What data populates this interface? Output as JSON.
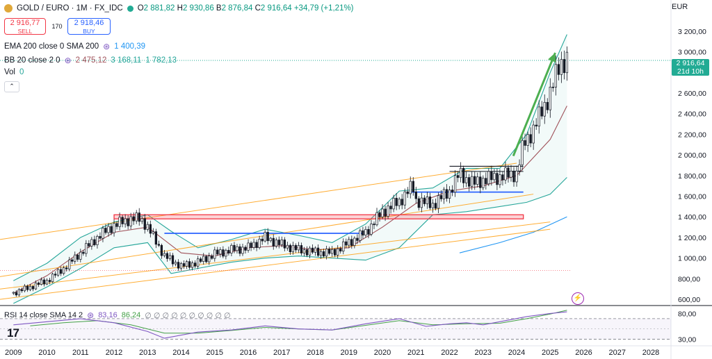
{
  "header": {
    "symbol_line": "GOLD / EURO · 1M · FX_IDC",
    "ohlc": {
      "o_label": "O",
      "o": "2 881,82",
      "h_label": "H",
      "h": "2 930,86",
      "b_label": "B",
      "b": "2 876,84",
      "c_label": "C",
      "c": "2 916,64",
      "change": "+34,79 (+1,21%)"
    },
    "currency": "EUR"
  },
  "trade": {
    "sell_price": "2 916,77",
    "sell_label": "SELL",
    "spread": "170",
    "buy_price": "2 918,46",
    "buy_label": "BUY"
  },
  "indicators": {
    "ema_label": "EMA 200 close 0 SMA 200",
    "ema_value": "1 400,39",
    "bb_label": "BB 20 close 2 0",
    "bb_basis": "2 475,12",
    "bb_upper": "3 168,11",
    "bb_lower": "1 782,13",
    "vol_label": "Vol",
    "vol_value": "0",
    "rsi_label": "RSI 14 close SMA 14 2",
    "rsi_value": "83,16",
    "rsi_sma": "86,24",
    "rsi_placeholders": "∅ ∅ ∅ ∅ ∅ ∅ ∅ ∅ ∅ ∅"
  },
  "price_tag": {
    "price": "2 916,64",
    "countdown": "21d 10h"
  },
  "collapse_icon": "chevron-up-icon",
  "logo_text": "17",
  "colors": {
    "up": "#26a69a",
    "down": "#ef5350",
    "bb": "#26a69a",
    "bb_basis": "#a0525a",
    "ema": "#2196f3",
    "fan": "#ff9800",
    "blue_level": "#2962ff",
    "red_zone": "#f23645",
    "arrow": "#4caf50",
    "rsi": "#7e57c2",
    "rsi_sma": "#43a047",
    "price": "#22ab94"
  },
  "chart_data": {
    "type": "candlestick",
    "title": "GOLD / EURO · 1M · FX_IDC",
    "y_ticks": [
      600,
      800,
      1000,
      1200,
      1400,
      1600,
      1800,
      2000,
      2200,
      2400,
      2600,
      3000,
      3200
    ],
    "y_tick_labels": [
      "600,00",
      "800,00",
      "1 000,00",
      "1 200,00",
      "1 400,00",
      "1 600,00",
      "1 800,00",
      "2 000,00",
      "2 200,00",
      "2 400,00",
      "2 600,00",
      "3 000,00",
      "3 200,00"
    ],
    "x_ticks": [
      "2009",
      "2010",
      "2011",
      "2012",
      "2013",
      "2014",
      "2015",
      "2016",
      "2017",
      "2018",
      "2019",
      "2020",
      "2021",
      "2022",
      "2023",
      "2024",
      "2025",
      "2026",
      "2027",
      "2028"
    ],
    "ylim": [
      540,
      3300
    ],
    "xlim": [
      2008.6,
      2028.6
    ],
    "close_series": [
      [
        2009.0,
        660
      ],
      [
        2009.5,
        720
      ],
      [
        2010.0,
        780
      ],
      [
        2010.5,
        900
      ],
      [
        2011.0,
        1050
      ],
      [
        2011.5,
        1200
      ],
      [
        2012.0,
        1320
      ],
      [
        2012.5,
        1380
      ],
      [
        2012.8,
        1380
      ],
      [
        2013.0,
        1300
      ],
      [
        2013.5,
        1020
      ],
      [
        2014.0,
        920
      ],
      [
        2014.5,
        960
      ],
      [
        2015.0,
        1040
      ],
      [
        2015.5,
        1080
      ],
      [
        2016.0,
        1100
      ],
      [
        2016.5,
        1200
      ],
      [
        2017.0,
        1130
      ],
      [
        2017.5,
        1080
      ],
      [
        2018.0,
        1060
      ],
      [
        2018.5,
        1050
      ],
      [
        2019.0,
        1150
      ],
      [
        2019.5,
        1250
      ],
      [
        2020.0,
        1450
      ],
      [
        2020.5,
        1550
      ],
      [
        2020.9,
        1700
      ],
      [
        2021.0,
        1560
      ],
      [
        2021.5,
        1520
      ],
      [
        2022.0,
        1650
      ],
      [
        2022.3,
        1820
      ],
      [
        2022.7,
        1720
      ],
      [
        2023.0,
        1760
      ],
      [
        2023.5,
        1790
      ],
      [
        2024.0,
        1820
      ],
      [
        2024.2,
        2100
      ],
      [
        2024.5,
        2250
      ],
      [
        2025.0,
        2600
      ],
      [
        2025.3,
        2900
      ],
      [
        2025.5,
        2916.64
      ]
    ],
    "bb_upper_series": [
      [
        2009.0,
        780
      ],
      [
        2010.0,
        950
      ],
      [
        2011.0,
        1200
      ],
      [
        2012.0,
        1350
      ],
      [
        2013.0,
        1420
      ],
      [
        2013.7,
        1260
      ],
      [
        2014.5,
        1100
      ],
      [
        2015.5,
        1180
      ],
      [
        2016.5,
        1280
      ],
      [
        2017.5,
        1220
      ],
      [
        2018.5,
        1150
      ],
      [
        2019.5,
        1330
      ],
      [
        2020.5,
        1650
      ],
      [
        2021.5,
        1680
      ],
      [
        2022.5,
        1870
      ],
      [
        2023.5,
        1870
      ],
      [
        2024.3,
        2200
      ],
      [
        2025.0,
        2800
      ],
      [
        2025.5,
        3168.11
      ]
    ],
    "bb_lower_series": [
      [
        2009.0,
        560
      ],
      [
        2010.0,
        720
      ],
      [
        2011.0,
        900
      ],
      [
        2012.0,
        1100
      ],
      [
        2013.0,
        1150
      ],
      [
        2013.7,
        850
      ],
      [
        2014.5,
        900
      ],
      [
        2015.5,
        960
      ],
      [
        2016.5,
        1000
      ],
      [
        2017.5,
        1020
      ],
      [
        2018.5,
        1000
      ],
      [
        2019.5,
        980
      ],
      [
        2020.5,
        1100
      ],
      [
        2021.5,
        1420
      ],
      [
        2022.5,
        1450
      ],
      [
        2023.5,
        1500
      ],
      [
        2024.3,
        1540
      ],
      [
        2025.0,
        1620
      ],
      [
        2025.5,
        1782.13
      ]
    ],
    "bb_basis_series": [
      [
        2009.0,
        660
      ],
      [
        2010.0,
        830
      ],
      [
        2011.0,
        1060
      ],
      [
        2012.0,
        1250
      ],
      [
        2013.0,
        1300
      ],
      [
        2014.0,
        1050
      ],
      [
        2015.0,
        1020
      ],
      [
        2016.0,
        1100
      ],
      [
        2017.0,
        1120
      ],
      [
        2018.0,
        1080
      ],
      [
        2019.0,
        1100
      ],
      [
        2020.0,
        1300
      ],
      [
        2021.0,
        1530
      ],
      [
        2022.0,
        1650
      ],
      [
        2023.0,
        1700
      ],
      [
        2024.0,
        1800
      ],
      [
        2025.0,
        2150
      ],
      [
        2025.5,
        2475.12
      ]
    ],
    "ema_series": [
      [
        2022.3,
        1050
      ],
      [
        2023.5,
        1150
      ],
      [
        2024.5,
        1250
      ],
      [
        2025.5,
        1400.39
      ]
    ],
    "fan_lines": [
      [
        [
          2008.6,
          1180
        ],
        [
          2024.0,
          1920
        ]
      ],
      [
        [
          2008.6,
          820
        ],
        [
          2024.5,
          1620
        ]
      ],
      [
        [
          2008.6,
          700
        ],
        [
          2025.0,
          1350
        ]
      ],
      [
        [
          2008.6,
          600
        ],
        [
          2025.0,
          1280
        ]
      ]
    ],
    "blue_levels": [
      {
        "x0": 2013.5,
        "x1": 2019.4,
        "y": 1240
      },
      {
        "x0": 2020.8,
        "x1": 2024.2,
        "y": 1640
      }
    ],
    "black_level": {
      "x0": 2022.0,
      "x1": 2024.2,
      "y": 1890
    },
    "red_zone": {
      "x0": 2012.0,
      "x1": 2024.2,
      "y0": 1380,
      "y1": 1420
    },
    "arrow": {
      "from": [
        2023.9,
        1990
      ],
      "to": [
        2025.15,
        2990
      ]
    },
    "dotted_levels": [
      2916.64,
      880
    ],
    "rsi": {
      "ylim": [
        20,
        90
      ],
      "y_ticks": [
        80,
        30
      ],
      "y_tick_labels": [
        "80,00",
        "30,00"
      ],
      "band": [
        30,
        70
      ],
      "rsi_series": [
        [
          2009.0,
          58
        ],
        [
          2010.0,
          64
        ],
        [
          2011.0,
          70
        ],
        [
          2012.0,
          62
        ],
        [
          2013.0,
          45
        ],
        [
          2013.5,
          32
        ],
        [
          2014.5,
          44
        ],
        [
          2015.5,
          48
        ],
        [
          2016.5,
          56
        ],
        [
          2017.5,
          50
        ],
        [
          2018.5,
          48
        ],
        [
          2019.5,
          60
        ],
        [
          2020.5,
          70
        ],
        [
          2021.3,
          55
        ],
        [
          2022.0,
          60
        ],
        [
          2022.5,
          62
        ],
        [
          2023.0,
          58
        ],
        [
          2023.5,
          64
        ],
        [
          2024.3,
          74
        ],
        [
          2025.0,
          80
        ],
        [
          2025.5,
          83.16
        ]
      ],
      "sma_series": [
        [
          2009.5,
          56
        ],
        [
          2010.5,
          62
        ],
        [
          2011.5,
          66
        ],
        [
          2012.5,
          58
        ],
        [
          2013.5,
          42
        ],
        [
          2014.5,
          42
        ],
        [
          2015.5,
          47
        ],
        [
          2016.5,
          53
        ],
        [
          2017.5,
          50
        ],
        [
          2018.5,
          48
        ],
        [
          2019.5,
          57
        ],
        [
          2020.5,
          66
        ],
        [
          2021.5,
          58
        ],
        [
          2022.5,
          60
        ],
        [
          2023.5,
          61
        ],
        [
          2024.3,
          70
        ],
        [
          2025.0,
          79
        ],
        [
          2025.5,
          86.24
        ]
      ]
    }
  }
}
